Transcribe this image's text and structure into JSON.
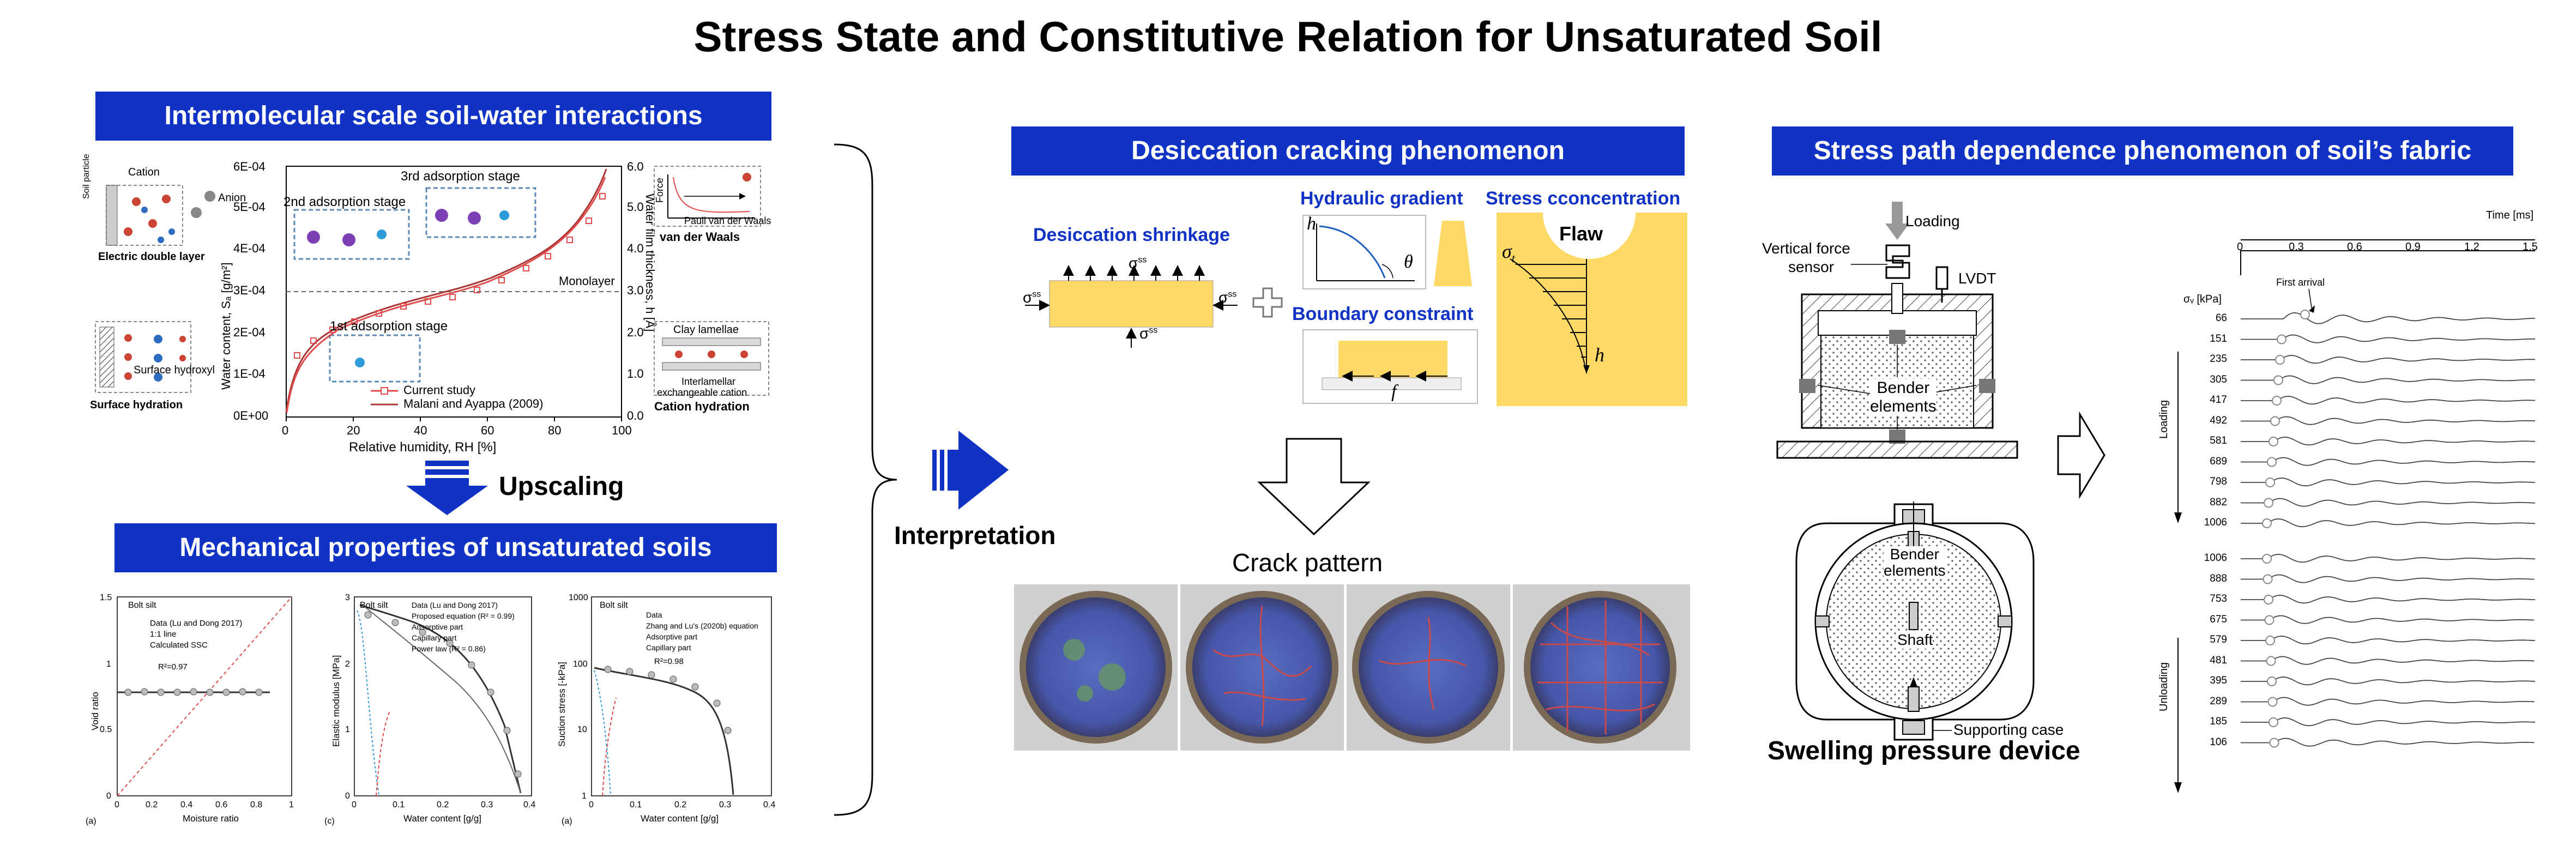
{
  "title": "Stress State and Constitutive Relation for Unsaturated Soil",
  "colors": {
    "banner": "#1033c6",
    "accent_yellow": "#ffd966",
    "arrow_blue": "#1033c6",
    "curve_red": "#e24b4b"
  },
  "left": {
    "banner_top": "Intermolecular scale soil-water interactions",
    "banner_bottom": "Mechanical properties of unsaturated soils",
    "upscaling": "Upscaling",
    "isotherm": {
      "y_left_label": "Water content, Sₐ [g/m²]",
      "y_right_label": "Water film thickness, h [Å]",
      "x_label": "Relative humidity, RH [%]",
      "y_left_ticks": [
        "0E+00",
        "1E-04",
        "2E-04",
        "3E-04",
        "4E-04",
        "5E-04",
        "6E-04"
      ],
      "y_right_ticks": [
        "0.0",
        "1.0",
        "2.0",
        "3.0",
        "4.0",
        "5.0",
        "6.0"
      ],
      "x_ticks": [
        "0",
        "20",
        "40",
        "60",
        "80",
        "100"
      ],
      "stage3": "3rd adsorption stage",
      "stage2": "2nd adsorption stage",
      "stage1": "1st adsorption stage",
      "monolayer": "Monolayer",
      "legend_current": "Current study",
      "legend_malani": "Malani and Ayappa (2009)"
    },
    "insets": {
      "cation": "Cation",
      "anion": "Anion",
      "soil_particle": "Soil particle",
      "edl": "Electric double layer",
      "surface_hydroxyl": "Surface hydroxyl",
      "surface_hydration": "Surface hydration",
      "force": "Force",
      "pauli": "Pauli",
      "vdw_small": "van der Waals",
      "vdw": "van der Waals",
      "clay_lamellae": "Clay lamellae",
      "interlamellar": "Interlamellar",
      "exch_cation": "exchangeable cation",
      "cation_hydration": "Cation hydration"
    },
    "mech_a": {
      "title": "Bolt silt",
      "ylabel": "Void ratio",
      "xlabel": "Moisture ratio",
      "panel": "(a)",
      "legend": [
        "Data (Lu and Dong 2017)",
        "1:1 line",
        "Calculated SSC"
      ],
      "r2": "R²=0.97",
      "y_ticks": [
        "0",
        "0.5",
        "1",
        "1.5"
      ],
      "x_ticks": [
        "0",
        "0.2",
        "0.4",
        "0.6",
        "0.8",
        "1"
      ]
    },
    "mech_c": {
      "title": "Bolt silt",
      "ylabel": "Elastic modulus [MPa]",
      "xlabel": "Water content [g/g]",
      "panel": "(c)",
      "legend": [
        "Data (Lu and Dong 2017)",
        "Proposed equation (R² = 0.99)",
        "Adsorptive part",
        "Capillary part",
        "Power law (R² = 0.86)"
      ],
      "y_ticks": [
        "0",
        "1",
        "2",
        "3"
      ],
      "x_ticks": [
        "0",
        "0.1",
        "0.2",
        "0.3",
        "0.4"
      ]
    },
    "mech_d": {
      "title": "Bolt silt",
      "ylabel": "Suction stress [-kPa]",
      "xlabel": "Water content [g/g]",
      "panel": "(a)",
      "legend": [
        "Data",
        "Zhang and Lu's (2020b) equation",
        "Adsorptive part",
        "Capillary part"
      ],
      "r2": "R²=0.98",
      "y_ticks": [
        "1",
        "10",
        "100",
        "1000"
      ],
      "x_ticks": [
        "0",
        "0.1",
        "0.2",
        "0.3",
        "0.4"
      ]
    }
  },
  "middle": {
    "interpretation": "Interpretation",
    "banner": "Desiccation cracking phenomenon",
    "shrinkage_label": "Desiccation shrinkage",
    "sigma_sym": "σ",
    "sigma_sup": "ss",
    "hydraulic": "Hydraulic gradient",
    "boundary": "Boundary constraint",
    "stress_conc": "Stress cconcentration",
    "flaw": "Flaw",
    "sigma_t": "σ",
    "sigma_t_sub": "t",
    "h_sym": "h",
    "theta_sym": "θ",
    "f_sym": "f",
    "crack_pattern": "Crack pattern"
  },
  "right": {
    "banner": "Stress path dependence phenomenon of soil’s fabric",
    "loading": "Loading",
    "vertical_force": "Vertical force",
    "sensor": "sensor",
    "lvdt": "LVDT",
    "bender_elements": "Bender elements",
    "bender_line1": "Bender",
    "bender_line2": "elements",
    "shaft": "Shaft",
    "supporting_case": "Supporting case",
    "device_title": "Swelling pressure device",
    "time_label": "Time [ms]",
    "time_ticks": [
      "0",
      "0.3",
      "0.6",
      "0.9",
      "1.2",
      "1.5"
    ],
    "sigma_v_label": "σᵥ [kPa]",
    "first_arrival": "First arrival",
    "loading_side": "Loading",
    "unloading_side": "Unloading",
    "loading_stresses": [
      "66",
      "151",
      "235",
      "305",
      "417",
      "492",
      "581",
      "689",
      "798",
      "882",
      "1006"
    ],
    "unloading_stresses": [
      "1006",
      "888",
      "753",
      "675",
      "579",
      "481",
      "395",
      "289",
      "185",
      "106"
    ]
  }
}
